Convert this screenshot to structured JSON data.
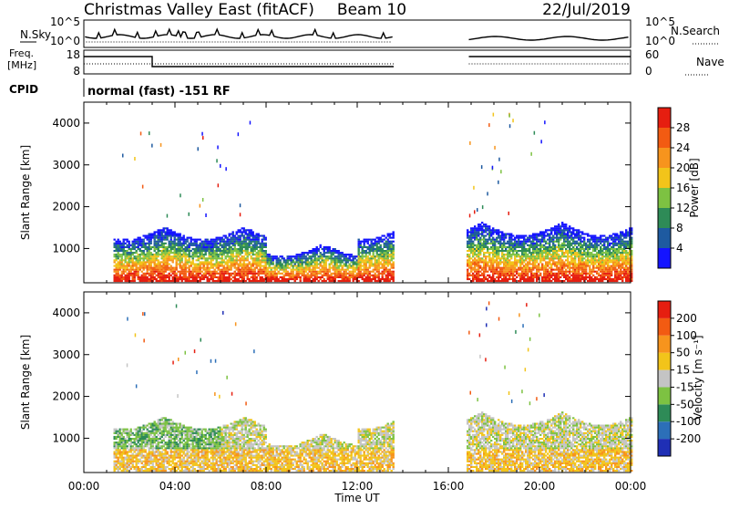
{
  "header": {
    "title": "Christmas Valley East (fitACF)",
    "beam": "Beam 10",
    "date": "22/Jul/2019"
  },
  "nsky_panel": {
    "left_label": "N.Sky",
    "right_label": "N.Search",
    "ticks_left": [
      "10^5",
      "10^0"
    ],
    "ticks_right": [
      "10^5",
      "10^0"
    ]
  },
  "freq_panel": {
    "left_label_1": "Freq.",
    "left_label_2": "[MHz]",
    "right_label": "Nave",
    "ticks_left": [
      "18",
      "8"
    ],
    "ticks_right": [
      "60",
      "0"
    ]
  },
  "cpid": {
    "label": "CPID",
    "value": "normal (fast) -151 RF"
  },
  "chart_data": [
    {
      "type": "heatmap",
      "title": "",
      "ylabel": "Slant Range [km]",
      "xlabel": "",
      "ylim": [
        180,
        4500
      ],
      "xlim_hours": [
        0,
        24
      ],
      "yticks": [
        "1000",
        "2000",
        "3000",
        "4000"
      ],
      "xticks": [
        "00:00",
        "04:00",
        "08:00",
        "12:00",
        "16:00",
        "20:00",
        "00:00"
      ],
      "colorbar": {
        "label": "Power [dB]",
        "tick_labels": [
          "4",
          "8",
          "12",
          "16",
          "20",
          "24",
          "28"
        ],
        "range": [
          0,
          32
        ],
        "colors": [
          "#1414ff",
          "#1e5aa0",
          "#2e8b57",
          "#7dc242",
          "#f2c41a",
          "#f7941d",
          "#f25b12",
          "#e61e10"
        ]
      },
      "scatter_regions": [
        {
          "t0": 1.3,
          "t1": 13.6,
          "r0": 200,
          "r1": 1500
        },
        {
          "t0": 16.8,
          "t1": 24.0,
          "r0": 200,
          "r1": 1600
        }
      ]
    },
    {
      "type": "heatmap",
      "title": "",
      "ylabel": "Slant Range [km]",
      "xlabel": "Time UT",
      "ylim": [
        180,
        4500
      ],
      "xlim_hours": [
        0,
        24
      ],
      "yticks": [
        "1000",
        "2000",
        "3000",
        "4000"
      ],
      "xticks": [
        "00:00",
        "04:00",
        "08:00",
        "12:00",
        "16:00",
        "20:00",
        "00:00"
      ],
      "colorbar": {
        "label": "Velocity [m s⁻¹]",
        "tick_labels": [
          "200",
          "100",
          "50",
          "15",
          "-15",
          "-50",
          "-100",
          "-200"
        ],
        "range": [
          -250,
          250
        ],
        "colors": [
          "#1f2fb5",
          "#2c6fb8",
          "#2e8b57",
          "#7dc242",
          "#c4c4c4",
          "#f2c41a",
          "#f7941d",
          "#f25b12",
          "#e61e10"
        ]
      },
      "scatter_regions": [
        {
          "t0": 1.3,
          "t1": 13.6,
          "r0": 200,
          "r1": 1500
        },
        {
          "t0": 16.8,
          "t1": 24.0,
          "r0": 200,
          "r1": 1600
        }
      ]
    }
  ],
  "colors": {
    "axis": "#000000",
    "background": "#ffffff"
  }
}
